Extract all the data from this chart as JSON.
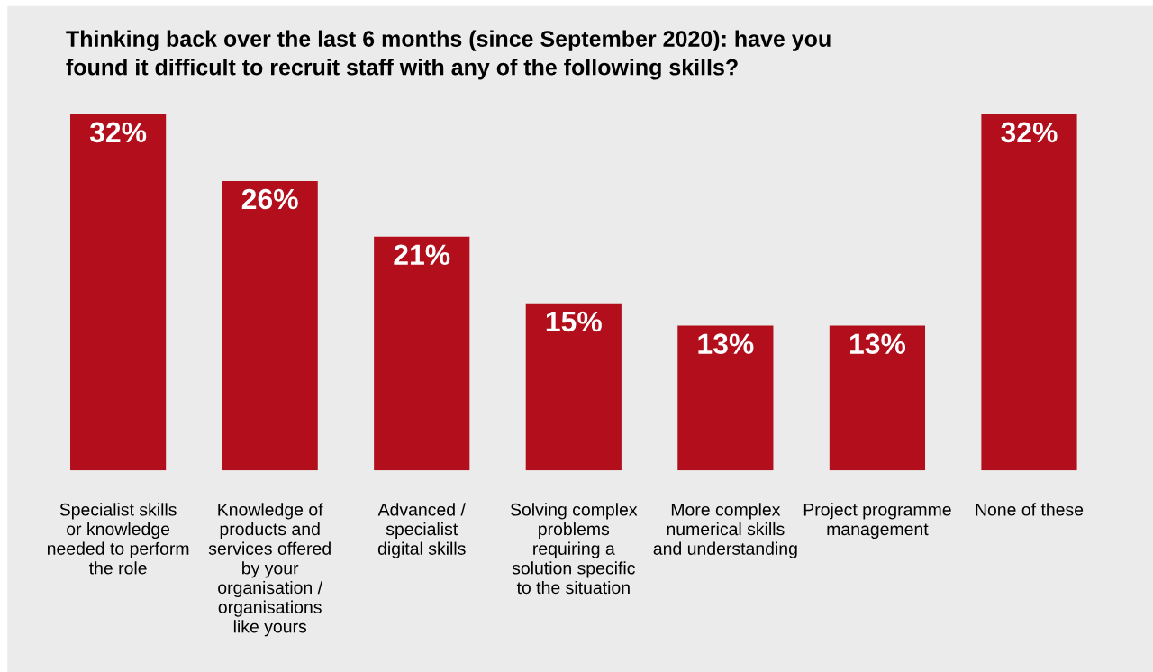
{
  "chart_data": {
    "type": "bar",
    "title": "Thinking back over the last 6 months (since September 2020): have you found it difficult to recruit staff with any of the following skills?",
    "categories": [
      "Specialist skills or knowledge needed to perform the role",
      "Knowledge of products and services offered by your organisation / organisations like yours",
      "Advanced / specialist digital skills",
      "Solving complex problems requiring a solution specific to the situation",
      "More complex numerical skills and understanding",
      "Project programme management",
      "None of these"
    ],
    "values": [
      32,
      26,
      21,
      15,
      13,
      13,
      32
    ],
    "color": "#b20e1b",
    "data_labels": true,
    "value_labels": [
      "32%",
      "26%",
      "21%",
      "15%",
      "13%",
      "13%",
      "32%"
    ],
    "grid": false,
    "legend": false
  }
}
